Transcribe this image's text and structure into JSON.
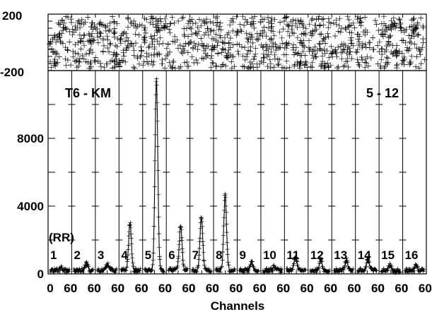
{
  "chart_data": {
    "type": "line",
    "title": "",
    "xlabel": "Channels",
    "ylabel": "",
    "panel_count": 16,
    "panel_labels": [
      "1",
      "2",
      "3",
      "4",
      "5",
      "6",
      "7",
      "8",
      "9",
      "10",
      "11",
      "12",
      "13",
      "14",
      "15",
      "16"
    ],
    "panel_x_ticks": [
      "0",
      "60"
    ],
    "panel_xlim": [
      0,
      63
    ],
    "annotations": {
      "left_label": "T6 - KM",
      "right_label": "5 - 12",
      "series_tag": "(RR)"
    },
    "residual_panel": {
      "ylim": [
        -200,
        200
      ],
      "tick_labels": [
        "200",
        "-200"
      ]
    },
    "main_panel": {
      "ylim": [
        0,
        12000
      ],
      "y_ticks": [
        0,
        4000,
        8000
      ],
      "tick_labels": [
        "0",
        "4000",
        "8000"
      ],
      "baseline": 200,
      "peak_values": [
        400,
        600,
        600,
        3000,
        11500,
        2800,
        3300,
        4600,
        650,
        400,
        1000,
        850,
        800,
        850,
        500,
        500
      ]
    }
  }
}
